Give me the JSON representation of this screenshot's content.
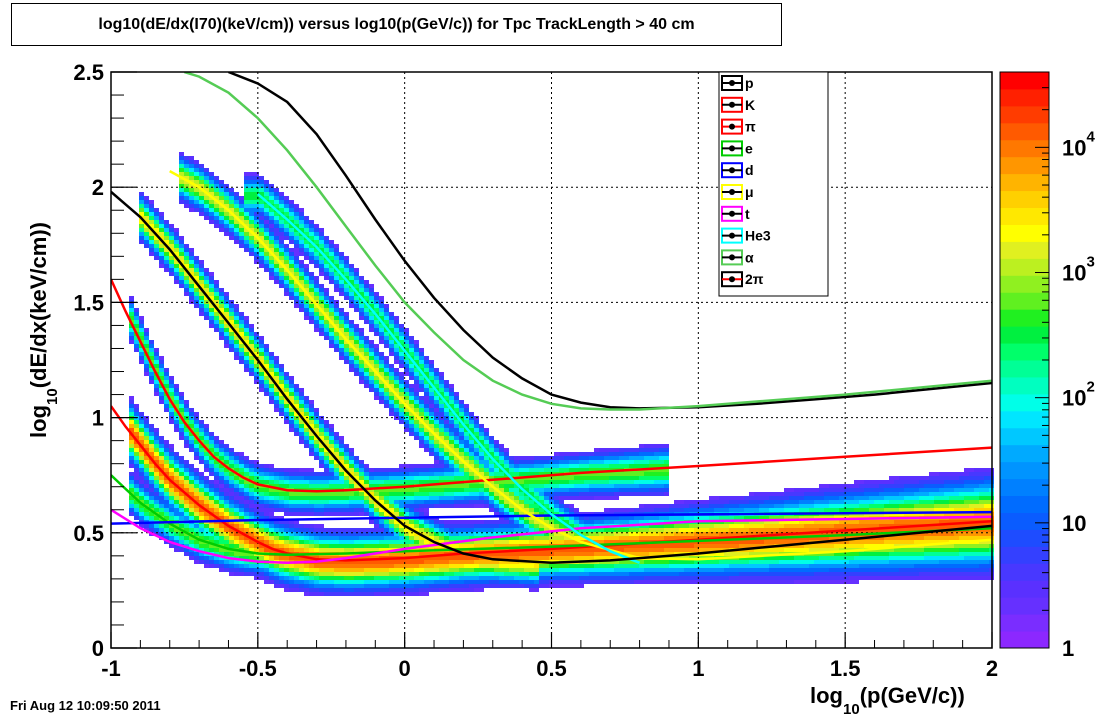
{
  "chart_data": {
    "type": "heatmap",
    "title": "log10(dE/dx(I70)(keV/cm)) versus log10(p(GeV/c)) for Tpc TrackLength > 40 cm",
    "xlabel_main": "log",
    "xlabel_sub": "10",
    "xlabel_rest": "(p(GeV/c))",
    "ylabel_main": "log",
    "ylabel_sub": "10",
    "ylabel_rest": "(dE/dx(keV/cm))",
    "xlim": [
      -1,
      2
    ],
    "ylim": [
      0,
      2.5
    ],
    "x_ticks": [
      -1,
      -0.5,
      0,
      0.5,
      1,
      1.5,
      2
    ],
    "x_tick_labels": [
      "-1",
      "-0.5",
      "0",
      "0.5",
      "1",
      "1.5",
      "2"
    ],
    "y_ticks": [
      0,
      0.5,
      1,
      1.5,
      2,
      2.5
    ],
    "y_tick_labels": [
      "0",
      "0.5",
      "1",
      "1.5",
      "2",
      "2.5"
    ],
    "grid": true,
    "legend_position": "top-right inside",
    "colorbar": {
      "scale": "log",
      "range": [
        1,
        40000
      ],
      "tick_labels": [
        {
          "base": "1",
          "exp": ""
        },
        {
          "base": "10",
          "exp": ""
        },
        {
          "base": "10",
          "exp": "2"
        },
        {
          "base": "10",
          "exp": "3"
        },
        {
          "base": "10",
          "exp": "4"
        }
      ],
      "colors": [
        "#8c28ff",
        "#7a2dff",
        "#6630ff",
        "#5a30ff",
        "#4838ff",
        "#3440ff",
        "#1e4cff",
        "#0a5cff",
        "#006cff",
        "#0080ff",
        "#0094ff",
        "#00aaff",
        "#00c8ff",
        "#00e6ff",
        "#00ffe8",
        "#00ffc0",
        "#00ff96",
        "#00ff6a",
        "#00f040",
        "#20f020",
        "#60f020",
        "#90f020",
        "#bcf020",
        "#e0f020",
        "#ffff00",
        "#ffe800",
        "#ffd000",
        "#ffb400",
        "#ff9600",
        "#ff7800",
        "#ff5a00",
        "#ff3c00",
        "#ff2000",
        "#ff0000"
      ]
    },
    "series": [
      {
        "name": "p",
        "color": "#000000",
        "x": [
          -0.6,
          -0.5,
          -0.4,
          -0.3,
          -0.2,
          -0.1,
          0,
          0.1,
          0.2,
          0.3,
          0.4,
          0.5,
          0.6,
          0.7,
          0.8,
          1,
          1.2,
          1.4,
          1.6,
          1.8,
          2
        ],
        "y": [
          2.5,
          2.45,
          2.37,
          2.23,
          2.05,
          1.86,
          1.68,
          1.52,
          1.38,
          1.26,
          1.17,
          1.1,
          1.065,
          1.045,
          1.04,
          1.045,
          1.06,
          1.08,
          1.1,
          1.125,
          1.15
        ]
      },
      {
        "name": "K",
        "color": "#ff0000",
        "x": [
          -1,
          -0.95,
          -0.9,
          -0.85,
          -0.8,
          -0.75,
          -0.7,
          -0.65,
          -0.6,
          -0.55,
          -0.5,
          -0.4,
          -0.3,
          -0.2,
          0,
          0.3,
          0.6,
          1,
          1.5,
          2
        ],
        "y": [
          1.6,
          1.46,
          1.33,
          1.2,
          1.08,
          0.98,
          0.9,
          0.83,
          0.78,
          0.74,
          0.71,
          0.685,
          0.68,
          0.685,
          0.7,
          0.73,
          0.76,
          0.79,
          0.83,
          0.87
        ]
      },
      {
        "name": "π",
        "color": "#ff0000",
        "x": [
          -1,
          -0.95,
          -0.9,
          -0.85,
          -0.8,
          -0.7,
          -0.6,
          -0.5,
          -0.45,
          -0.4,
          -0.3,
          -0.2,
          0,
          0.2,
          0.5,
          1,
          1.5,
          2
        ],
        "y": [
          1.05,
          0.96,
          0.88,
          0.8,
          0.73,
          0.62,
          0.53,
          0.46,
          0.43,
          0.41,
          0.385,
          0.38,
          0.39,
          0.41,
          0.43,
          0.47,
          0.51,
          0.55
        ]
      },
      {
        "name": "e",
        "color": "#00cc00",
        "x": [
          -1,
          -0.9,
          -0.8,
          -0.7,
          -0.6,
          -0.5,
          -0.4,
          -0.2,
          0,
          0.5,
          1,
          1.5,
          2
        ],
        "y": [
          0.75,
          0.63,
          0.54,
          0.47,
          0.43,
          0.41,
          0.405,
          0.41,
          0.42,
          0.44,
          0.465,
          0.49,
          0.52
        ]
      },
      {
        "name": "d",
        "color": "#0000ff",
        "x": [
          -1,
          -0.5,
          0,
          0.5,
          1,
          1.5,
          2
        ],
        "y": [
          0.54,
          0.555,
          0.565,
          0.575,
          0.58,
          0.585,
          0.59
        ]
      },
      {
        "name": "μ",
        "color": "#ffff00",
        "x": [
          -0.8,
          -0.7,
          -0.6,
          -0.5,
          -0.4,
          -0.3,
          -0.2,
          -0.1,
          0,
          0.1,
          0.2,
          0.3,
          0.4,
          0.5,
          0.6,
          0.8,
          1,
          1.5,
          2
        ],
        "y": [
          2.07,
          2.0,
          1.9,
          1.78,
          1.64,
          1.49,
          1.34,
          1.2,
          1.06,
          0.93,
          0.81,
          0.7,
          0.6,
          0.52,
          0.46,
          0.39,
          0.385,
          0.42,
          0.47
        ]
      },
      {
        "name": "t",
        "color": "#ff00ff",
        "x": [
          -1,
          -0.9,
          -0.8,
          -0.7,
          -0.6,
          -0.5,
          -0.4,
          -0.3,
          -0.2,
          0,
          0.3,
          0.6,
          1,
          1.5,
          2
        ],
        "y": [
          0.6,
          0.52,
          0.46,
          0.42,
          0.39,
          0.375,
          0.37,
          0.375,
          0.39,
          0.43,
          0.48,
          0.52,
          0.55,
          0.56,
          0.57
        ]
      },
      {
        "name": "He3",
        "color": "#00ffff",
        "x": [
          -0.5,
          -0.4,
          -0.3,
          -0.2,
          -0.1,
          0,
          0.1,
          0.2,
          0.3,
          0.4,
          0.5,
          0.6,
          0.7,
          0.8
        ],
        "y": [
          1.97,
          1.86,
          1.74,
          1.6,
          1.45,
          1.29,
          1.13,
          0.97,
          0.82,
          0.69,
          0.58,
          0.49,
          0.42,
          0.37
        ]
      },
      {
        "name": "α",
        "color": "#55cc55",
        "x": [
          -0.75,
          -0.7,
          -0.6,
          -0.5,
          -0.4,
          -0.3,
          -0.2,
          -0.1,
          0,
          0.1,
          0.2,
          0.3,
          0.4,
          0.5,
          0.6,
          0.7,
          0.8,
          1,
          1.5,
          2
        ],
        "y": [
          2.5,
          2.48,
          2.41,
          2.3,
          2.16,
          2.0,
          1.83,
          1.66,
          1.5,
          1.37,
          1.25,
          1.16,
          1.1,
          1.06,
          1.04,
          1.035,
          1.035,
          1.05,
          1.1,
          1.16
        ]
      },
      {
        "name": "2π",
        "color": "#000000",
        "x": [
          -1,
          -0.9,
          -0.8,
          -0.7,
          -0.6,
          -0.5,
          -0.4,
          -0.3,
          -0.2,
          -0.1,
          0,
          0.1,
          0.2,
          0.3,
          0.5,
          0.7,
          1,
          1.5,
          2
        ],
        "y": [
          1.98,
          1.87,
          1.73,
          1.57,
          1.41,
          1.25,
          1.08,
          0.92,
          0.77,
          0.64,
          0.53,
          0.46,
          0.41,
          0.385,
          0.37,
          0.38,
          0.41,
          0.47,
          0.53
        ]
      }
    ],
    "legend_swatches": [
      {
        "line": "#000000",
        "border": "#000000"
      },
      {
        "line": "#000000",
        "border": "#ff0000"
      },
      {
        "line": "#ff0000",
        "border": "#ff0000"
      },
      {
        "line": "#000000",
        "border": "#00cc00"
      },
      {
        "line": "#000000",
        "border": "#0000ff"
      },
      {
        "line": "#000000",
        "border": "#ffff00"
      },
      {
        "line": "#000000",
        "border": "#ff00ff"
      },
      {
        "line": "#000000",
        "border": "#00ffff"
      },
      {
        "line": "#000000",
        "border": "#55cc55"
      },
      {
        "line": "#ff0000",
        "border": "#000000"
      }
    ],
    "density_bands": [
      {
        "curve": "π",
        "x0": -0.95,
        "x1": 2,
        "peak": 0.9,
        "width": 0.07
      },
      {
        "curve": "e",
        "x0": -0.95,
        "x1": 2,
        "peak": 0.6,
        "width": 0.05
      },
      {
        "curve": "K",
        "x0": -0.95,
        "x1": 0.9,
        "peak": 0.6,
        "width": 0.05
      },
      {
        "curve": "2π",
        "x0": -0.92,
        "x1": 0.45,
        "peak": 0.75,
        "width": 0.055
      },
      {
        "curve": "μ",
        "x0": -0.78,
        "x1": 0.65,
        "peak": 0.7,
        "width": 0.055
      },
      {
        "curve": "He3",
        "x0": -0.55,
        "x1": 0.75,
        "peak": 0.55,
        "width": 0.05
      }
    ]
  },
  "timestamp": "Fri Aug 12 10:09:50 2011"
}
